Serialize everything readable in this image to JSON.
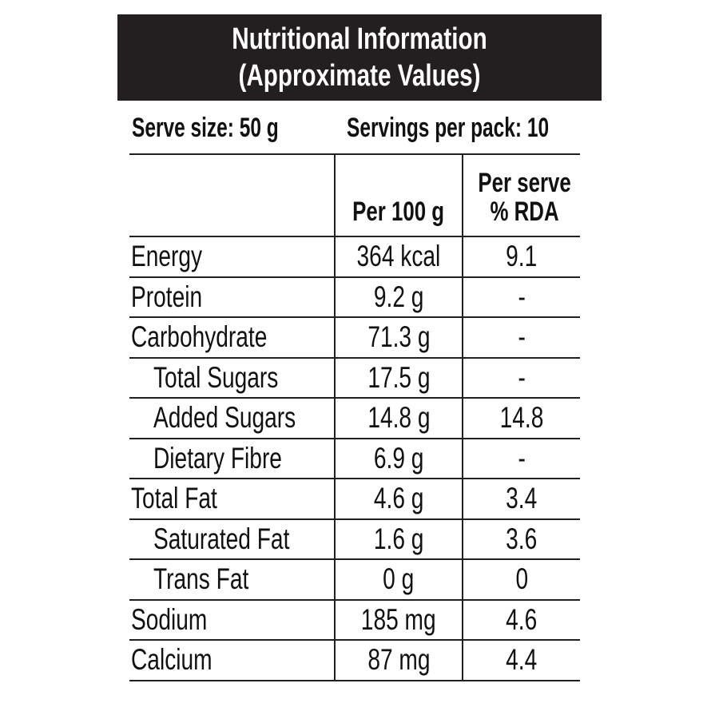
{
  "header": {
    "title_line1": "Nutritional Information",
    "title_line2": "(Approximate Values)"
  },
  "serve": {
    "serve_size": "Serve size: 50 g",
    "servings_per_pack": "Servings per pack: 10"
  },
  "columns": {
    "nutrient": "",
    "per_100g": "Per 100 g",
    "per_serve_line1": "Per serve",
    "per_serve_line2": "% RDA"
  },
  "rows": [
    {
      "name": "Energy",
      "per_100g": "364 kcal",
      "rda": "9.1"
    },
    {
      "name": "Protein",
      "per_100g": "9.2 g",
      "rda": "-"
    },
    {
      "name": "Carbohydrate",
      "per_100g": "71.3 g",
      "rda": "-"
    },
    {
      "name": "Total Sugars",
      "per_100g": "17.5 g",
      "rda": "-"
    },
    {
      "name": "Added Sugars",
      "per_100g": "14.8 g",
      "rda": "14.8"
    },
    {
      "name": "Dietary Fibre",
      "per_100g": "6.9 g",
      "rda": "-"
    },
    {
      "name": "Total Fat",
      "per_100g": "4.6 g",
      "rda": "3.4"
    },
    {
      "name": "Saturated Fat",
      "per_100g": "1.6 g",
      "rda": "3.6"
    },
    {
      "name": "Trans Fat",
      "per_100g": "0 g",
      "rda": "0"
    },
    {
      "name": "Sodium",
      "per_100g": "185 mg",
      "rda": "4.6"
    },
    {
      "name": "Calcium",
      "per_100g": "87 mg",
      "rda": "4.4"
    }
  ],
  "colors": {
    "header_bg": "#231f20",
    "header_text": "#ffffff",
    "text": "#111111",
    "rule": "#231f20"
  }
}
